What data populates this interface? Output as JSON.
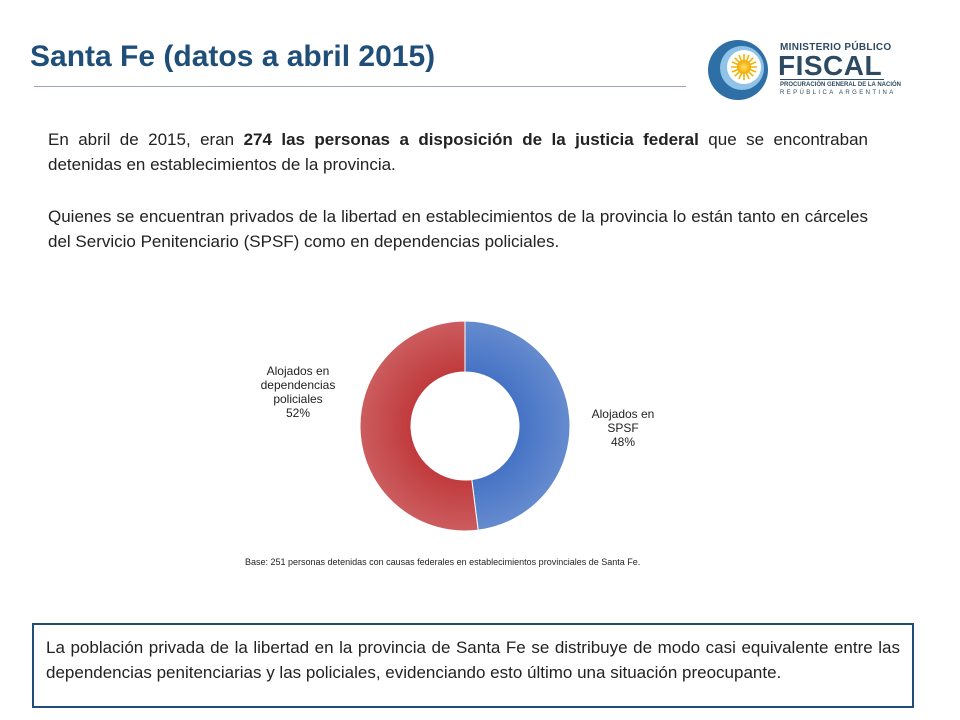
{
  "header": {
    "title": "Santa Fe (datos a abril 2015)"
  },
  "logo": {
    "line1": "MINISTERIO PÚBLICO",
    "line2": "FISCAL",
    "line3": "PROCURACIÓN GENERAL DE LA NACIÓN",
    "line4": "REPÚBLICA ARGENTINA"
  },
  "intro": {
    "p1_a": "En abril de 2015, eran ",
    "p1_b": "274 las personas a disposición de la justicia federal",
    "p1_c": " que se encontraban detenidas en establecimientos de la provincia.",
    "p2": "Quienes se encuentran privados de la libertad en establecimientos de la provincia lo están tanto en cárceles del Servicio Penitenciario (SPSF) como en dependencias policiales."
  },
  "chart_data": {
    "type": "pie",
    "style": "donut",
    "title": "",
    "slices": [
      {
        "label_lines": [
          "Alojados en",
          "SPSF"
        ],
        "percent_label": "48%",
        "value": 48,
        "color": "#4472c4"
      },
      {
        "label_lines": [
          "Alojados en",
          "dependencias",
          "policiales"
        ],
        "percent_label": "52%",
        "value": 52,
        "color": "#c0393b"
      }
    ],
    "legend": "none",
    "note": "Base: 251 personas detenidas con causas federales en establecimientos provinciales de Santa Fe."
  },
  "conclusion": {
    "text": "La población privada de la libertad en la provincia de Santa Fe se distribuye de modo casi equivalente entre las dependencias penitenciarias y las policiales, evidenciando esto último una situación preocupante."
  }
}
